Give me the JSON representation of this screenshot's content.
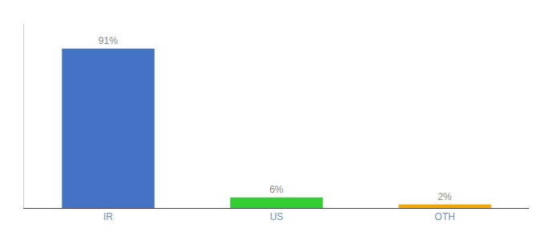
{
  "chart_data": {
    "type": "bar",
    "categories": [
      "IR",
      "US",
      "OTH"
    ],
    "values": [
      91,
      6,
      2
    ],
    "value_labels": [
      "91%",
      "6%",
      "2%"
    ],
    "colors": [
      "#4472c4",
      "#33cc33",
      "#f5a800"
    ],
    "ylim": [
      0,
      105
    ],
    "grid": false,
    "data_labels": true,
    "tick_labels": "x"
  }
}
